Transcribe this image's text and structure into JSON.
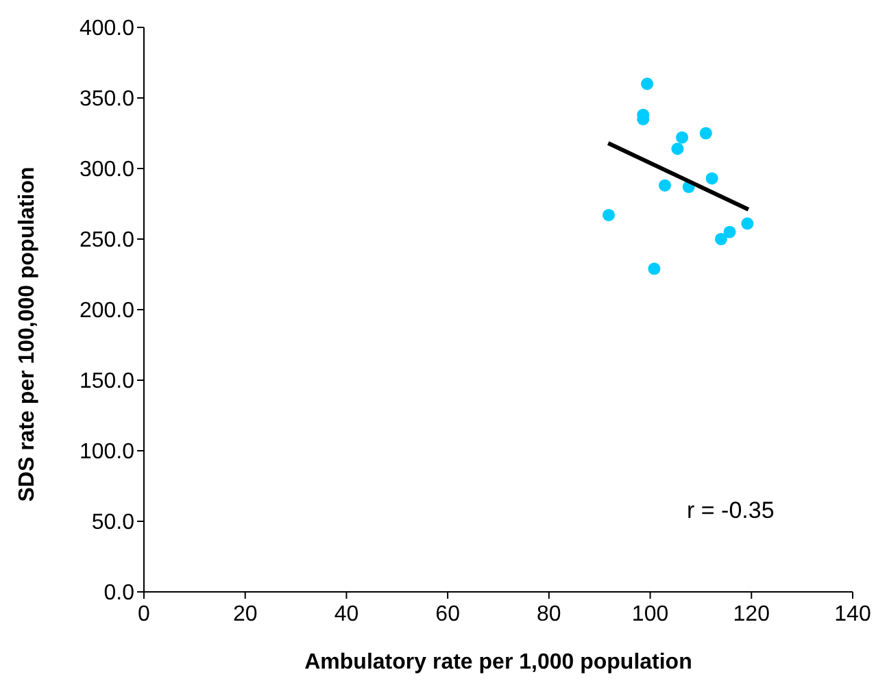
{
  "chart_data": {
    "type": "scatter",
    "xlabel": "Ambulatory rate per 1,000 population",
    "ylabel": "SDS rate per 100,000 population",
    "xlim": [
      0,
      140
    ],
    "xticks": [
      0,
      20,
      40,
      60,
      80,
      100,
      120,
      140
    ],
    "ylim": [
      0,
      400
    ],
    "yticks": [
      {
        "value": 0,
        "label": "0.0"
      },
      {
        "value": 50,
        "label": "50.0"
      },
      {
        "value": 100,
        "label": "100.0"
      },
      {
        "value": 150,
        "label": "150.0"
      },
      {
        "value": 200,
        "label": "200.0"
      },
      {
        "value": 250,
        "label": "250.0"
      },
      {
        "value": 300,
        "label": "300.0"
      },
      {
        "value": 350,
        "label": "350.0"
      },
      {
        "value": 400,
        "label": "400.0"
      }
    ],
    "grid": false,
    "legend": false,
    "marker": "circle",
    "annotations": [
      "r = -0.35"
    ],
    "series": [
      {
        "color": "#00ccff",
        "x": [
          99.4,
          98.6,
          98.6,
          106.3,
          111.0,
          105.4,
          102.9,
          107.6,
          112.2,
          91.8,
          119.2,
          115.7,
          114.0,
          100.8
        ],
        "values": [
          360,
          338,
          335,
          322,
          325,
          314,
          288,
          287,
          293,
          267,
          261,
          255,
          250,
          229
        ]
      },
      {
        "type": "line",
        "marker": "none",
        "color": "#000000",
        "x": [
          91.7,
          119.4
        ],
        "values": [
          318,
          271
        ]
      }
    ]
  }
}
